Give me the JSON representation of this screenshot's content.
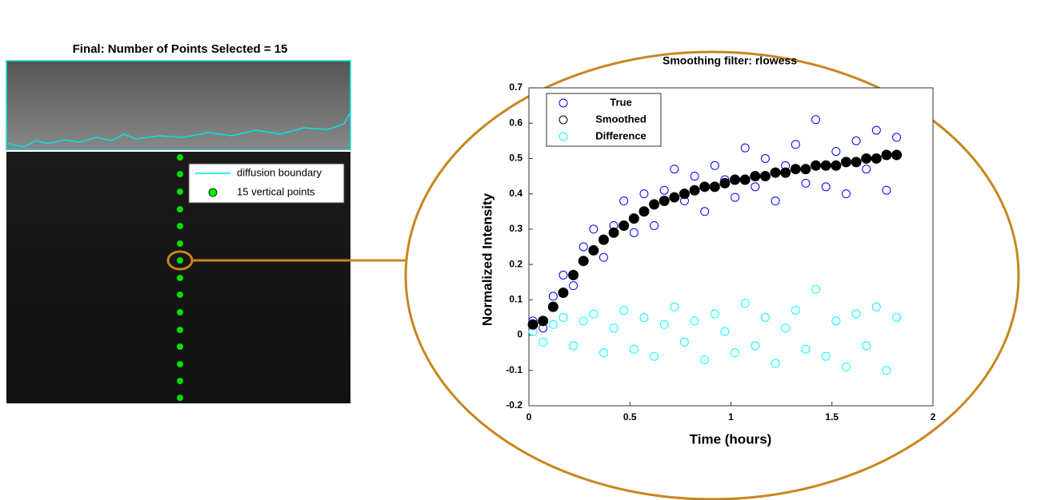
{
  "chart_data": [
    {
      "type": "image",
      "title": "Final: Number of Points Selected = 15",
      "legend": [
        {
          "name": "diffusion boundary",
          "color": "#00e5ee"
        },
        {
          "name": "15 vertical points",
          "color": "#00ee00"
        }
      ]
    },
    {
      "type": "scatter",
      "title": "Smoothing filter: rlowess",
      "xlabel": "Time (hours)",
      "ylabel": "Normalized Intensity",
      "xlim": [
        0,
        2
      ],
      "xticks": [
        0,
        0.5,
        1,
        1.5,
        2
      ],
      "ylim": [
        -0.2,
        0.7
      ],
      "yticks": [
        -0.2,
        -0.1,
        0,
        0.1,
        0.2,
        0.3,
        0.4,
        0.5,
        0.6,
        0.7
      ],
      "x": [
        0.02,
        0.07,
        0.12,
        0.17,
        0.22,
        0.27,
        0.32,
        0.37,
        0.42,
        0.47,
        0.52,
        0.57,
        0.62,
        0.67,
        0.72,
        0.77,
        0.82,
        0.87,
        0.92,
        0.97,
        1.02,
        1.07,
        1.12,
        1.17,
        1.22,
        1.27,
        1.32,
        1.37,
        1.42,
        1.47,
        1.52,
        1.57,
        1.62,
        1.67,
        1.72,
        1.77,
        1.82
      ],
      "series": [
        {
          "name": "True",
          "color": "#0000ff",
          "values": [
            0.04,
            0.02,
            0.11,
            0.17,
            0.14,
            0.25,
            0.3,
            0.22,
            0.31,
            0.38,
            0.29,
            0.4,
            0.31,
            0.41,
            0.47,
            0.38,
            0.45,
            0.35,
            0.48,
            0.44,
            0.39,
            0.53,
            0.42,
            0.5,
            0.38,
            0.48,
            0.54,
            0.43,
            0.61,
            0.42,
            0.52,
            0.4,
            0.55,
            0.47,
            0.58,
            0.41,
            0.56
          ]
        },
        {
          "name": "Smoothed",
          "color": "#000000",
          "values": [
            0.03,
            0.04,
            0.08,
            0.12,
            0.17,
            0.21,
            0.24,
            0.27,
            0.29,
            0.31,
            0.33,
            0.35,
            0.37,
            0.38,
            0.39,
            0.4,
            0.41,
            0.42,
            0.42,
            0.43,
            0.44,
            0.44,
            0.45,
            0.45,
            0.46,
            0.46,
            0.47,
            0.47,
            0.48,
            0.48,
            0.48,
            0.49,
            0.49,
            0.5,
            0.5,
            0.51,
            0.51
          ]
        },
        {
          "name": "Difference",
          "color": "#00ffff",
          "values": [
            0.01,
            -0.02,
            0.03,
            0.05,
            -0.03,
            0.04,
            0.06,
            -0.05,
            0.02,
            0.07,
            -0.04,
            0.05,
            -0.06,
            0.03,
            0.08,
            -0.02,
            0.04,
            -0.07,
            0.06,
            0.01,
            -0.05,
            0.09,
            -0.03,
            0.05,
            -0.08,
            0.02,
            0.07,
            -0.04,
            0.13,
            -0.06,
            0.04,
            -0.09,
            0.06,
            -0.03,
            0.08,
            -0.1,
            0.05
          ]
        }
      ]
    }
  ]
}
